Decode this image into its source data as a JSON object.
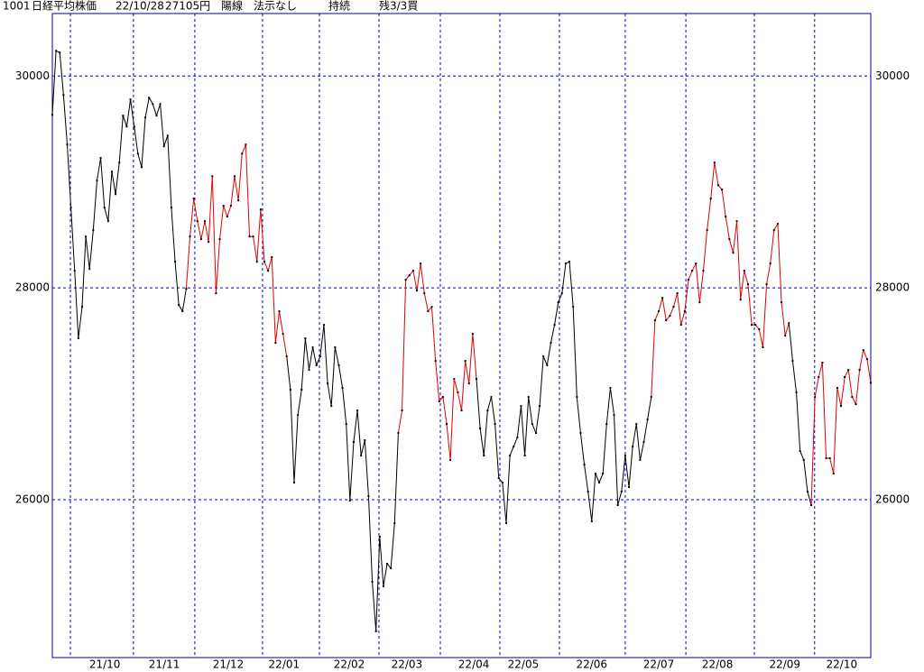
{
  "chart_data": {
    "type": "line",
    "title_parts": [
      "1001",
      "日経平均株価",
      "22/10/28",
      "27105円",
      "陽線",
      "法示なし",
      "持続",
      "残3/3買"
    ],
    "values": [
      29634,
      30238,
      30221,
      29821,
      29353,
      28758,
      28162,
      27524,
      27821,
      28485,
      28179,
      28545,
      29013,
      29226,
      28758,
      28630,
      29098,
      28885,
      29183,
      29626,
      29523,
      29779,
      29523,
      29268,
      29140,
      29609,
      29796,
      29736,
      29626,
      29736,
      29336,
      29438,
      28758,
      28247,
      27838,
      27779,
      27991,
      28485,
      28843,
      28630,
      28460,
      28630,
      28434,
      29055,
      27949,
      28460,
      28775,
      28673,
      28775,
      29055,
      28826,
      29268,
      29353,
      28485,
      28485,
      28247,
      28741,
      28247,
      28162,
      28290,
      27481,
      27779,
      27566,
      27354,
      27039,
      26162,
      26800,
      27039,
      27524,
      27226,
      27439,
      27269,
      27354,
      27651,
      27098,
      26885,
      27439,
      27269,
      27056,
      26715,
      25992,
      26545,
      26843,
      26417,
      26562,
      26034,
      25226,
      24758,
      25651,
      25183,
      25396,
      25353,
      25779,
      26630,
      26843,
      28077,
      28119,
      28162,
      27975,
      28230,
      27949,
      27779,
      27821,
      27311,
      26928,
      26970,
      26715,
      26375,
      27141,
      27013,
      26843,
      27311,
      27098,
      27566,
      27141,
      26673,
      26417,
      26843,
      26970,
      26715,
      26204,
      26162,
      25779,
      26417,
      26502,
      26588,
      26885,
      26417,
      26970,
      26715,
      26630,
      26885,
      27354,
      27269,
      27481,
      27651,
      27864,
      27949,
      28230,
      28247,
      27821,
      26970,
      26630,
      26332,
      26077,
      25796,
      26247,
      26162,
      26247,
      26715,
      27056,
      26800,
      25949,
      26077,
      26417,
      26119,
      26502,
      26715,
      26375,
      26545,
      26758,
      26970,
      27694,
      27779,
      27906,
      27694,
      27736,
      27821,
      27949,
      27651,
      27779,
      28077,
      28162,
      28230,
      27864,
      28162,
      28545,
      28843,
      29183,
      28970,
      28928,
      28673,
      28460,
      28332,
      28630,
      27889,
      28162,
      28034,
      27651,
      27651,
      27609,
      27439,
      28034,
      28230,
      28545,
      28604,
      27864,
      27549,
      27668,
      27311,
      27013,
      26460,
      26375,
      26077,
      25949,
      26970,
      27158,
      27294,
      26392,
      26392,
      26247,
      27056,
      26885,
      27158,
      27226,
      26970,
      26902,
      27226,
      27413,
      27328,
      27105
    ],
    "color": "#000000",
    "highlight": {
      "color": "#e00000",
      "ranges": [
        [
          36,
          63
        ],
        [
          93,
          114
        ],
        [
          161,
          198
        ],
        [
          204,
          220
        ]
      ]
    },
    "xlim": [
      0,
      220
    ],
    "xgrid": [
      4.85,
      21.8,
      38.3,
      56.5,
      71.8,
      87.8,
      104.3,
      120.3,
      136.3,
      154.0,
      170.3,
      188.7,
      204.9
    ],
    "xticks": [
      {
        "value": 14.1,
        "label": "21/10"
      },
      {
        "value": 30.1,
        "label": "21/11"
      },
      {
        "value": 47.3,
        "label": "21/12"
      },
      {
        "value": 62.3,
        "label": "22/01"
      },
      {
        "value": 79.8,
        "label": "22/02"
      },
      {
        "value": 95.3,
        "label": "22/03"
      },
      {
        "value": 113.3,
        "label": "22/04"
      },
      {
        "value": 126.6,
        "label": "22/05"
      },
      {
        "value": 145.0,
        "label": "22/06"
      },
      {
        "value": 163.0,
        "label": "22/07"
      },
      {
        "value": 178.8,
        "label": "22/08"
      },
      {
        "value": 196.9,
        "label": "22/09"
      },
      {
        "value": 212.2,
        "label": "22/10"
      }
    ],
    "ylim": [
      24510,
      30590
    ],
    "yticks": [
      26000,
      28000,
      30000
    ],
    "grid": true,
    "grid_color": "#0000c0"
  }
}
